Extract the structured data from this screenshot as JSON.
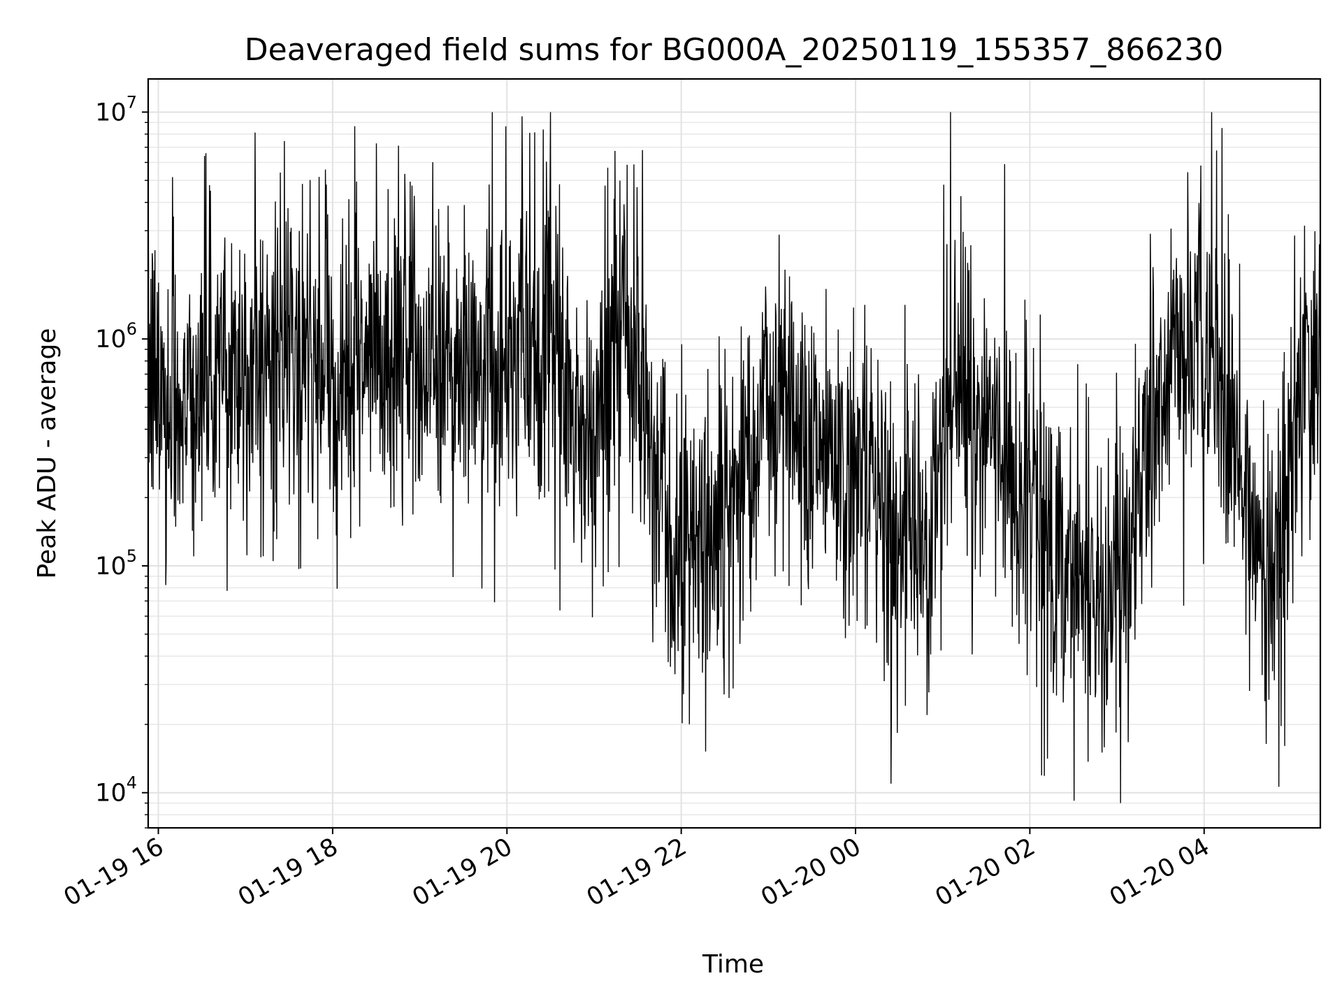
{
  "chart_data": {
    "type": "line",
    "title": "Deaveraged field sums for BG000A_20250119_155357_866230",
    "xlabel": "Time",
    "ylabel": "Peak ADU - average",
    "y_scale": "log",
    "grid": true,
    "x_range": [
      "2025-01-19 15:53",
      "2025-01-20 05:20"
    ],
    "ylim": [
      7000,
      14000000
    ],
    "x_ticks": [
      {
        "value": "2025-01-19 16:00",
        "label": "01-19 16"
      },
      {
        "value": "2025-01-19 18:00",
        "label": "01-19 18"
      },
      {
        "value": "2025-01-19 20:00",
        "label": "01-19 20"
      },
      {
        "value": "2025-01-19 22:00",
        "label": "01-19 22"
      },
      {
        "value": "2025-01-20 00:00",
        "label": "01-20 00"
      },
      {
        "value": "2025-01-20 02:00",
        "label": "01-20 02"
      },
      {
        "value": "2025-01-20 04:00",
        "label": "01-20 04"
      }
    ],
    "y_ticks": [
      {
        "value": 10000,
        "base": "10",
        "exp": "4"
      },
      {
        "value": 100000,
        "base": "10",
        "exp": "5"
      },
      {
        "value": 1000000,
        "base": "10",
        "exp": "6"
      },
      {
        "value": 10000000,
        "base": "10",
        "exp": "7"
      }
    ],
    "line_color": "#000000",
    "series": [
      {
        "x": [
          "2025-01-19 15:53",
          "2025-01-19 16:10",
          "2025-01-19 16:30",
          "2025-01-19 16:50",
          "2025-01-19 17:10",
          "2025-01-19 17:30",
          "2025-01-19 17:50",
          "2025-01-19 18:10",
          "2025-01-19 18:30",
          "2025-01-19 18:50",
          "2025-01-19 19:10",
          "2025-01-19 19:30",
          "2025-01-19 19:50",
          "2025-01-19 20:10",
          "2025-01-19 20:30",
          "2025-01-19 20:45",
          "2025-01-19 21:00",
          "2025-01-19 21:10",
          "2025-01-19 21:25",
          "2025-01-19 21:40",
          "2025-01-19 21:55",
          "2025-01-19 22:10",
          "2025-01-19 22:30",
          "2025-01-19 22:50",
          "2025-01-19 23:10",
          "2025-01-19 23:30",
          "2025-01-19 23:50",
          "2025-01-20 00:10",
          "2025-01-20 00:30",
          "2025-01-20 00:50",
          "2025-01-20 01:10",
          "2025-01-20 01:30",
          "2025-01-20 01:50",
          "2025-01-20 02:10",
          "2025-01-20 02:30",
          "2025-01-20 02:50",
          "2025-01-20 03:10",
          "2025-01-20 03:30",
          "2025-01-20 03:50",
          "2025-01-20 04:10",
          "2025-01-20 04:30",
          "2025-01-20 04:50",
          "2025-01-20 05:10",
          "2025-01-20 05:20"
        ],
        "y": [
          700000,
          500000,
          650000,
          800000,
          750000,
          850000,
          700000,
          800000,
          750000,
          900000,
          800000,
          750000,
          850000,
          800000,
          900000,
          450000,
          300000,
          1200000,
          1000000,
          400000,
          150000,
          120000,
          200000,
          400000,
          600000,
          400000,
          300000,
          200000,
          120000,
          150000,
          700000,
          400000,
          250000,
          150000,
          100000,
          80000,
          120000,
          600000,
          900000,
          700000,
          150000,
          120000,
          600000,
          1000000
        ]
      }
    ]
  }
}
